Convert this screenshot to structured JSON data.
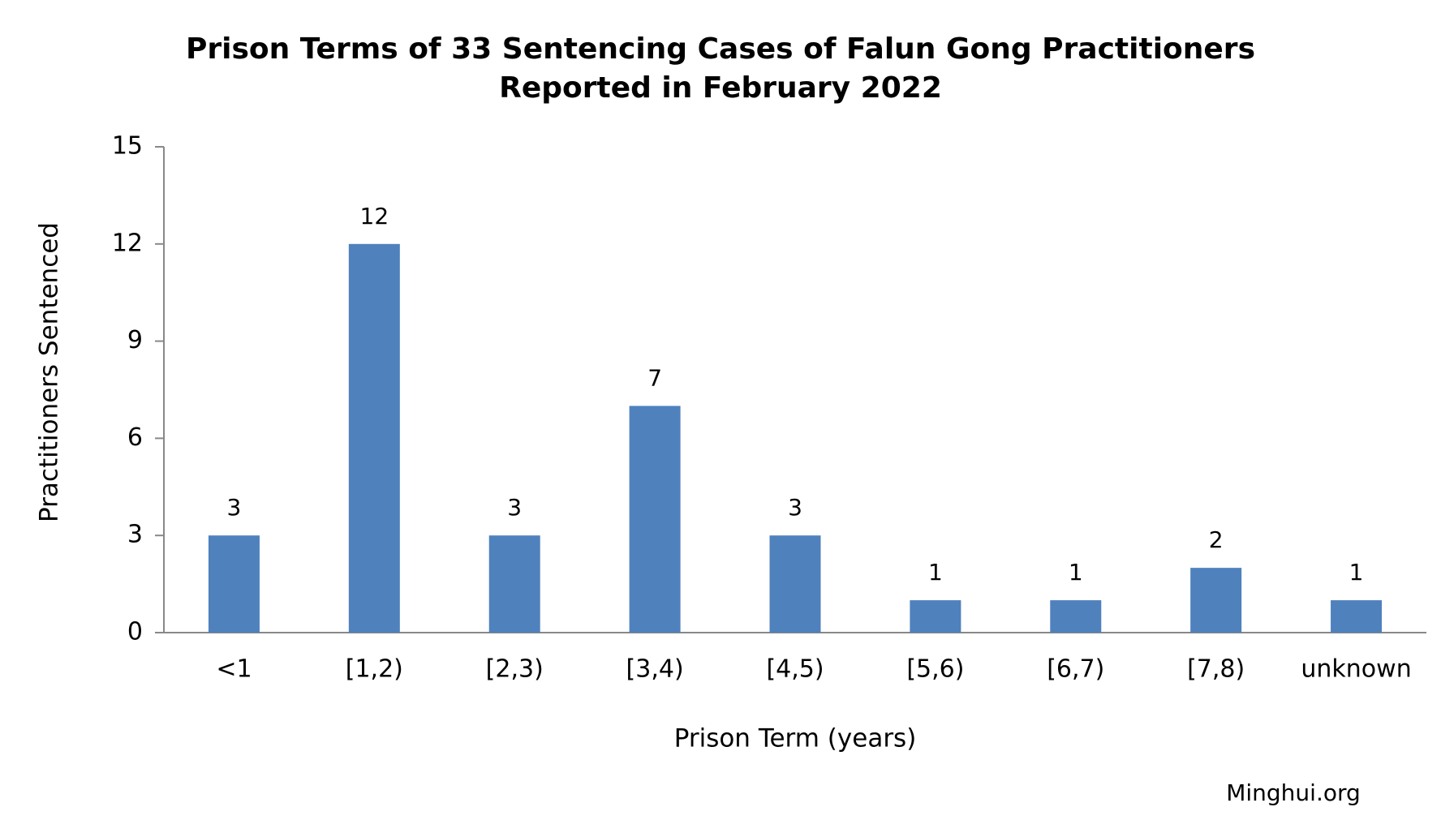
{
  "chart_data": {
    "type": "bar",
    "title": [
      "Prison Terms of 33 Sentencing Cases of Falun Gong Practitioners",
      "Reported in February 2022"
    ],
    "x_label": "Prison Term (years)",
    "y_label": "Practitioners Sentenced",
    "source": "Minghui.org",
    "categories": [
      "<1",
      "[1,2)",
      "[2,3)",
      "[3,4)",
      "[4,5)",
      "[5,6)",
      "[6,7)",
      "[7,8)",
      "unknown"
    ],
    "values": [
      3,
      12,
      3,
      7,
      3,
      1,
      1,
      2,
      1
    ],
    "color": "#4f81bd",
    "ylim": [
      0,
      15
    ],
    "yticks": [
      0,
      3,
      6,
      9,
      12,
      15
    ],
    "grid": false
  }
}
